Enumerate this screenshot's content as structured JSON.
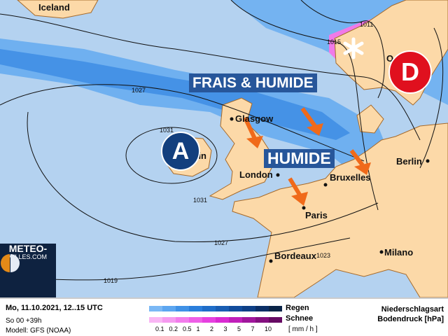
{
  "map": {
    "cities": {
      "iceland": "Iceland",
      "glasgow": "Glasgow",
      "dublin": "Dublin",
      "london": "London",
      "bruxelles": "Bruxelles",
      "paris": "Paris",
      "berlin": "Berlin",
      "bordeaux": "Bordeaux",
      "milano": "Milano",
      "oslo": "O"
    },
    "isobars": [
      "1027",
      "1031",
      "1031",
      "1027",
      "1019",
      "1015",
      "1011",
      "1023"
    ],
    "banners": {
      "frais_humide": "FRAIS & HUMIDE",
      "humide": "HUMIDE"
    },
    "high_label": "A",
    "low_label": "D",
    "colors": {
      "land": "#fcd9a8",
      "sea": "#b4d2f0",
      "high": "#123f7e",
      "low": "#e0101e",
      "arrow": "#f06a1a",
      "banner": "#27569a"
    },
    "icons": [
      "snowflake-icon",
      "arrow-icon"
    ]
  },
  "logo": {
    "line1": "METEO-",
    "line2": "VILLES.COM"
  },
  "legend": {
    "date": "Mo, 11.10.2021, 12..15 UTC",
    "run": "So 00 +39h",
    "model": "Modell: GFS (NOAA)",
    "rain_label": "Regen",
    "snow_label": "Schnee",
    "scale": [
      "0.1",
      "0.2",
      "0.5",
      "1",
      "2",
      "3",
      "5",
      "7",
      "10"
    ],
    "unit": "[ mm / h ]",
    "title1": "Niederschlagsart",
    "title2": "Bodendruck [hPa]",
    "rain_colors": [
      "#7ab8f5",
      "#5ca6f0",
      "#3f91e6",
      "#2a7edb",
      "#1f6dc8",
      "#195db2",
      "#114c9c",
      "#0e3f86",
      "#0b2f66",
      "#0a2447"
    ],
    "snow_colors": [
      "#f9b6f4",
      "#f59af0",
      "#f27cec",
      "#ee5ee7",
      "#e640e0",
      "#d92ad2",
      "#c01fba",
      "#a0169c",
      "#84107f",
      "#660b63"
    ]
  }
}
